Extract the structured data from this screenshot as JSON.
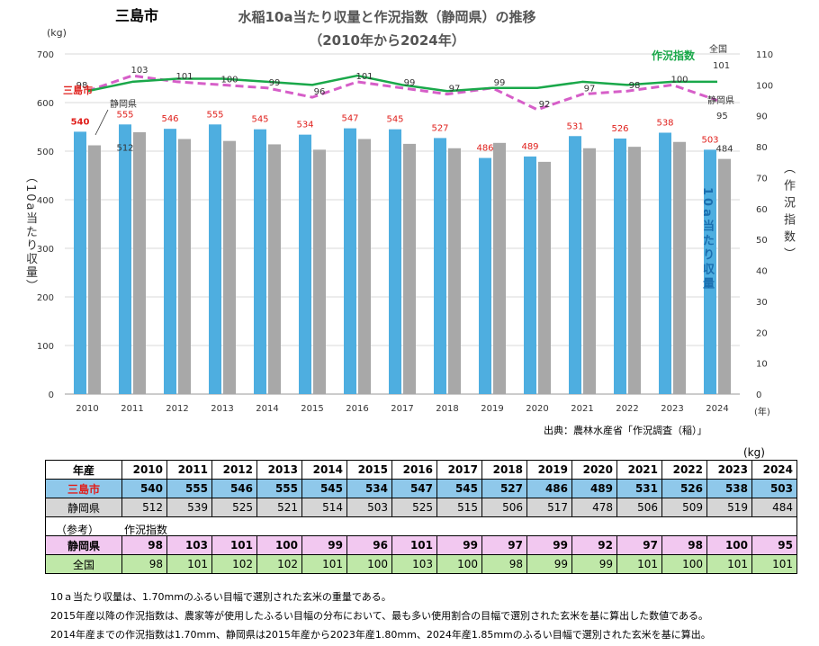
{
  "city_title": "三島市",
  "title_line1": "水稲10a当たり収量と作況指数（静岡県）の推移",
  "title_line2": "（2010年から2024年）",
  "left_unit": "(kg)",
  "left_axis_label": "（10a当たり収量）",
  "right_axis_label": "（作況指数）",
  "x_unit": "(年)",
  "inner_yield_label": "10a当たり収量",
  "inner_index_label": "作況指数",
  "source": "出典：農林水産省「作況調査（稲）」",
  "table_unit": "(kg)",
  "chart_data": {
    "type": "bar",
    "categories": [
      "2010",
      "2011",
      "2012",
      "2013",
      "2014",
      "2015",
      "2016",
      "2017",
      "2018",
      "2019",
      "2020",
      "2021",
      "2022",
      "2023",
      "2024"
    ],
    "series": [
      {
        "name": "三島市",
        "values": [
          540,
          555,
          546,
          555,
          545,
          534,
          547,
          545,
          527,
          486,
          489,
          531,
          526,
          538,
          503
        ],
        "color": "#4eaee0"
      },
      {
        "name": "静岡県",
        "values": [
          512,
          539,
          525,
          521,
          514,
          503,
          525,
          515,
          506,
          517,
          478,
          506,
          509,
          519,
          484
        ],
        "color": "#a8a8a8"
      }
    ],
    "lines": [
      {
        "name": "静岡県",
        "values": [
          98,
          103,
          101,
          100,
          99,
          96,
          101,
          99,
          97,
          99,
          92,
          97,
          98,
          100,
          95
        ],
        "color": "#d65ec8",
        "dashed": true
      },
      {
        "name": "全国",
        "values": [
          98,
          101,
          102,
          102,
          101,
          100,
          103,
          100,
          98,
          99,
          99,
          101,
          100,
          101,
          101
        ],
        "color": "#1aa84a"
      }
    ],
    "ylim": [
      0,
      700
    ],
    "yticks": [
      0,
      100,
      200,
      300,
      400,
      500,
      600,
      700
    ],
    "y2lim": [
      0,
      110
    ],
    "y2ticks": [
      0,
      10,
      20,
      30,
      40,
      50,
      60,
      70,
      80,
      90,
      100,
      110
    ]
  },
  "legend_labels": {
    "city": "三島市",
    "pref": "静岡県",
    "pref_index": "静岡県",
    "national": "全国",
    "national_last": "101",
    "pref_last_index": "95"
  },
  "table": {
    "header": "年産",
    "years": [
      "2010",
      "2011",
      "2012",
      "2013",
      "2014",
      "2015",
      "2016",
      "2017",
      "2018",
      "2019",
      "2020",
      "2021",
      "2022",
      "2023",
      "2024"
    ],
    "rows": [
      {
        "label": "三島市",
        "values": [
          "540",
          "555",
          "546",
          "555",
          "545",
          "534",
          "547",
          "545",
          "527",
          "486",
          "489",
          "531",
          "526",
          "538",
          "503"
        ]
      },
      {
        "label": "静岡県",
        "values": [
          "512",
          "539",
          "525",
          "521",
          "514",
          "503",
          "525",
          "515",
          "506",
          "517",
          "478",
          "506",
          "509",
          "519",
          "484"
        ]
      }
    ],
    "ref_label": "（参考）",
    "index_label": "作況指数",
    "index_rows": [
      {
        "label": "静岡県",
        "values": [
          "98",
          "103",
          "101",
          "100",
          "99",
          "96",
          "101",
          "99",
          "97",
          "99",
          "92",
          "97",
          "98",
          "100",
          "95"
        ]
      },
      {
        "label": "全国",
        "values": [
          "98",
          "101",
          "102",
          "102",
          "101",
          "100",
          "103",
          "100",
          "98",
          "99",
          "99",
          "101",
          "100",
          "101",
          "101"
        ]
      }
    ]
  },
  "notes": [
    "10ａ当たり収量は、1.70mmのふるい目幅で選別された玄米の重量である。",
    "2015年産以降の作況指数は、農家等が使用したふるい目幅の分布において、最も多い使用割合の目幅で選別された玄米を基に算出した数値である。",
    "2014年産までの作況指数は1.70mm、静岡県は2015年産から2023年産1.80mm、2024年産1.85mmのふるい目幅で選別された玄米を基に算出。"
  ]
}
